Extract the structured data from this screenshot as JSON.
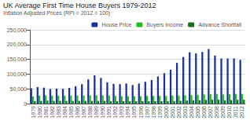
{
  "chart_data": {
    "type": "bar",
    "title": "UK Average First Time House Buyers 1979-2012",
    "subtitle": "Inflation Adjusted Prices (RPI = 2012 = 100)",
    "categories": [
      "1979",
      "1980",
      "1981",
      "1982",
      "1983",
      "1984",
      "1985",
      "1986",
      "1987",
      "1988",
      "1989",
      "1990",
      "1991",
      "1992",
      "1993",
      "1994",
      "1995",
      "1996",
      "1997",
      "1998",
      "1999",
      "2000",
      "2001",
      "2002",
      "2003",
      "2004",
      "2005",
      "2006",
      "2007",
      "2008",
      "2009",
      "2010",
      "2011",
      "2012"
    ],
    "series": [
      {
        "name": "House Price",
        "color": "#1a3399",
        "values": [
          52000,
          56000,
          54000,
          49000,
          51000,
          50000,
          53000,
          59000,
          66000,
          82000,
          96000,
          87000,
          72000,
          67000,
          66000,
          68000,
          63000,
          68000,
          74000,
          80000,
          92000,
          103000,
          115000,
          138000,
          158000,
          174000,
          170000,
          175000,
          185000,
          163000,
          153000,
          153000,
          153000,
          148000
        ]
      },
      {
        "name": "Buyers Income",
        "color": "#22bb22",
        "values": [
          24000,
          27000,
          28000,
          27000,
          27000,
          27000,
          27000,
          27000,
          27000,
          28000,
          28000,
          28000,
          27000,
          26000,
          25000,
          25000,
          25000,
          25000,
          26000,
          26000,
          26000,
          26000,
          27000,
          27000,
          28000,
          29000,
          30000,
          31000,
          32000,
          33000,
          31000,
          32000,
          33000,
          33000
        ]
      },
      {
        "name": "Advance Shortfall",
        "color": "#1a6e1a",
        "values": [
          8000,
          9000,
          10000,
          9000,
          9000,
          9000,
          9000,
          9000,
          9000,
          9000,
          9000,
          9000,
          8000,
          8000,
          8000,
          8000,
          8000,
          8000,
          8000,
          8000,
          8000,
          8000,
          8500,
          9500,
          10500,
          11500,
          11500,
          12500,
          13500,
          13500,
          11000,
          12000,
          13000,
          13000
        ]
      }
    ],
    "ylim": [
      0,
      250000
    ],
    "yticks": [
      0,
      {
        "value": 50000,
        "label": "50,000"
      },
      {
        "value": 100000,
        "label": "100,000"
      },
      {
        "value": 150000,
        "label": "150,000"
      },
      {
        "value": 200000,
        "label": "200,000"
      },
      {
        "value": 250000,
        "label": "250,000"
      }
    ],
    "grid": true,
    "legend": "upper right"
  }
}
